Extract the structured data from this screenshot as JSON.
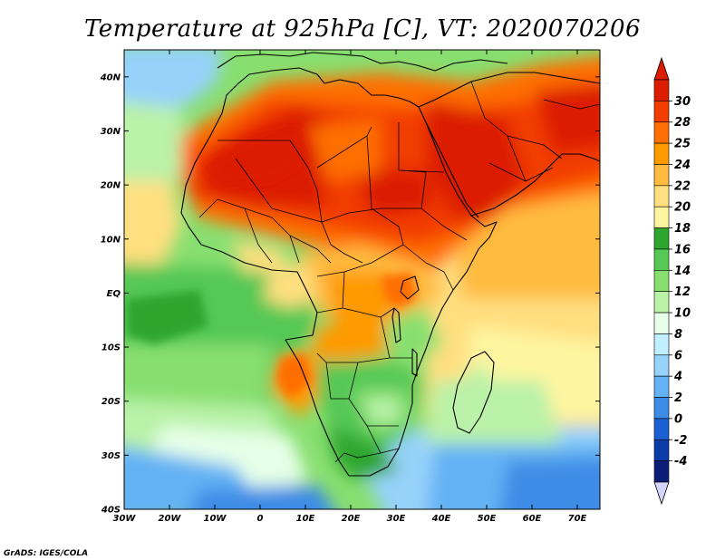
{
  "title": "Temperature at 925hPa [C], VT: 2020070206",
  "credit": "GrADS: IGES/COLA",
  "map": {
    "lon_range": [
      -30,
      75
    ],
    "lat_range": [
      -40,
      45
    ],
    "x_ticks": [
      {
        "lon": -30,
        "label": "30W"
      },
      {
        "lon": -20,
        "label": "20W"
      },
      {
        "lon": -10,
        "label": "10W"
      },
      {
        "lon": 0,
        "label": "0"
      },
      {
        "lon": 10,
        "label": "10E"
      },
      {
        "lon": 20,
        "label": "20E"
      },
      {
        "lon": 30,
        "label": "30E"
      },
      {
        "lon": 40,
        "label": "40E"
      },
      {
        "lon": 50,
        "label": "50E"
      },
      {
        "lon": 60,
        "label": "60E"
      },
      {
        "lon": 70,
        "label": "70E"
      }
    ],
    "y_ticks": [
      {
        "lat": 40,
        "label": "40N"
      },
      {
        "lat": 30,
        "label": "30N"
      },
      {
        "lat": 20,
        "label": "20N"
      },
      {
        "lat": 10,
        "label": "10N"
      },
      {
        "lat": 0,
        "label": "EQ"
      },
      {
        "lat": -10,
        "label": "10S"
      },
      {
        "lat": -20,
        "label": "20S"
      },
      {
        "lat": -30,
        "label": "30S"
      },
      {
        "lat": -40,
        "label": "40S"
      }
    ]
  },
  "colorbar": {
    "labels": [
      "30",
      "28",
      "25",
      "24",
      "22",
      "20",
      "18",
      "16",
      "14",
      "12",
      "10",
      "8",
      "6",
      "4",
      "2",
      "0",
      "-2",
      "-4"
    ],
    "colors": [
      "#dc1e00",
      "#f23c00",
      "#ff6e00",
      "#ff9a00",
      "#ffbb40",
      "#ffdf80",
      "#fff5a0",
      "#2ea62e",
      "#55c855",
      "#88df70",
      "#b9f2a8",
      "#e6ffe8",
      "#bff0fc",
      "#96d2fa",
      "#64b2f4",
      "#3c8ce6",
      "#1c5fd2",
      "#0c3ca8",
      "#0a1e78"
    ],
    "under_color": "#d4d4f8"
  }
}
